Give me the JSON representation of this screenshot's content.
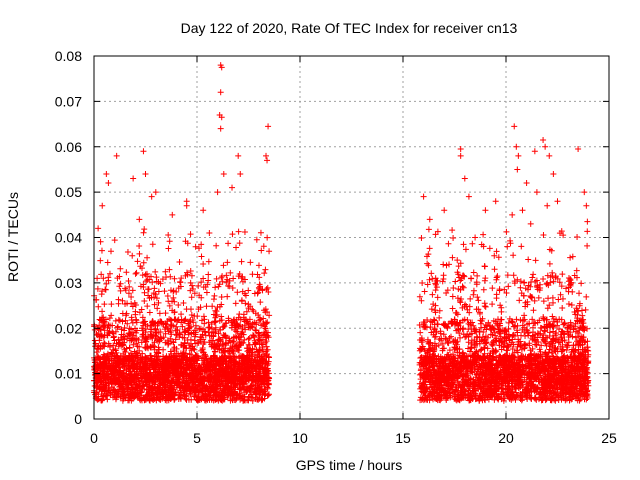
{
  "chart_data": {
    "type": "scatter",
    "title": "Day 122 of 2020, Rate Of TEC Index for receiver cn13",
    "xlabel": "GPS time / hours",
    "ylabel": "ROTI / TECUs",
    "xlim": [
      0,
      25
    ],
    "ylim": [
      0,
      0.08
    ],
    "x_ticks": [
      "0",
      "5",
      "10",
      "15",
      "20",
      "25"
    ],
    "y_ticks": [
      "0",
      "0.01",
      "0.02",
      "0.03",
      "0.04",
      "0.05",
      "0.06",
      "0.07",
      "0.08"
    ],
    "grid": true,
    "legend": "none",
    "marker": "plus",
    "color": "#ff0000",
    "coverage_hours": [
      [
        0.0,
        8.5
      ],
      [
        15.8,
        24.0
      ]
    ],
    "points": [
      [
        1.1,
        0.058
      ],
      [
        2.4,
        0.059
      ],
      [
        2.5,
        0.054
      ],
      [
        2.8,
        0.049
      ],
      [
        3.0,
        0.05
      ],
      [
        4.5,
        0.048
      ],
      [
        4.5,
        0.047
      ],
      [
        6.15,
        0.078
      ],
      [
        6.2,
        0.0775
      ],
      [
        6.15,
        0.072
      ],
      [
        6.1,
        0.067
      ],
      [
        6.2,
        0.0665
      ],
      [
        6.15,
        0.064
      ],
      [
        6.3,
        0.054
      ],
      [
        6.7,
        0.051
      ],
      [
        7.0,
        0.058
      ],
      [
        7.1,
        0.054
      ],
      [
        8.45,
        0.0645
      ],
      [
        8.35,
        0.058
      ],
      [
        8.4,
        0.057
      ],
      [
        0.6,
        0.054
      ],
      [
        0.7,
        0.052
      ],
      [
        0.4,
        0.047
      ],
      [
        0.2,
        0.042
      ],
      [
        1.9,
        0.053
      ],
      [
        2.2,
        0.044
      ],
      [
        5.3,
        0.046
      ],
      [
        5.6,
        0.041
      ],
      [
        3.8,
        0.045
      ],
      [
        6.0,
        0.05
      ],
      [
        16.0,
        0.049
      ],
      [
        17.0,
        0.046
      ],
      [
        17.8,
        0.0595
      ],
      [
        17.8,
        0.058
      ],
      [
        18.2,
        0.049
      ],
      [
        18.0,
        0.053
      ],
      [
        19.5,
        0.048
      ],
      [
        20.4,
        0.0645
      ],
      [
        20.5,
        0.06
      ],
      [
        20.6,
        0.058
      ],
      [
        20.55,
        0.055
      ],
      [
        21.0,
        0.052
      ],
      [
        21.4,
        0.059
      ],
      [
        21.8,
        0.0615
      ],
      [
        21.9,
        0.06
      ],
      [
        22.1,
        0.058
      ],
      [
        22.3,
        0.054
      ],
      [
        23.5,
        0.0595
      ],
      [
        23.8,
        0.05
      ],
      [
        23.9,
        0.047
      ],
      [
        23.95,
        0.0435
      ],
      [
        20.3,
        0.045
      ],
      [
        21.5,
        0.05
      ],
      [
        22.0,
        0.047
      ],
      [
        16.3,
        0.044
      ],
      [
        19.0,
        0.046
      ],
      [
        20.8,
        0.046
      ],
      [
        22.5,
        0.048
      ],
      [
        18.5,
        0.04
      ],
      [
        21.2,
        0.043
      ]
    ]
  }
}
